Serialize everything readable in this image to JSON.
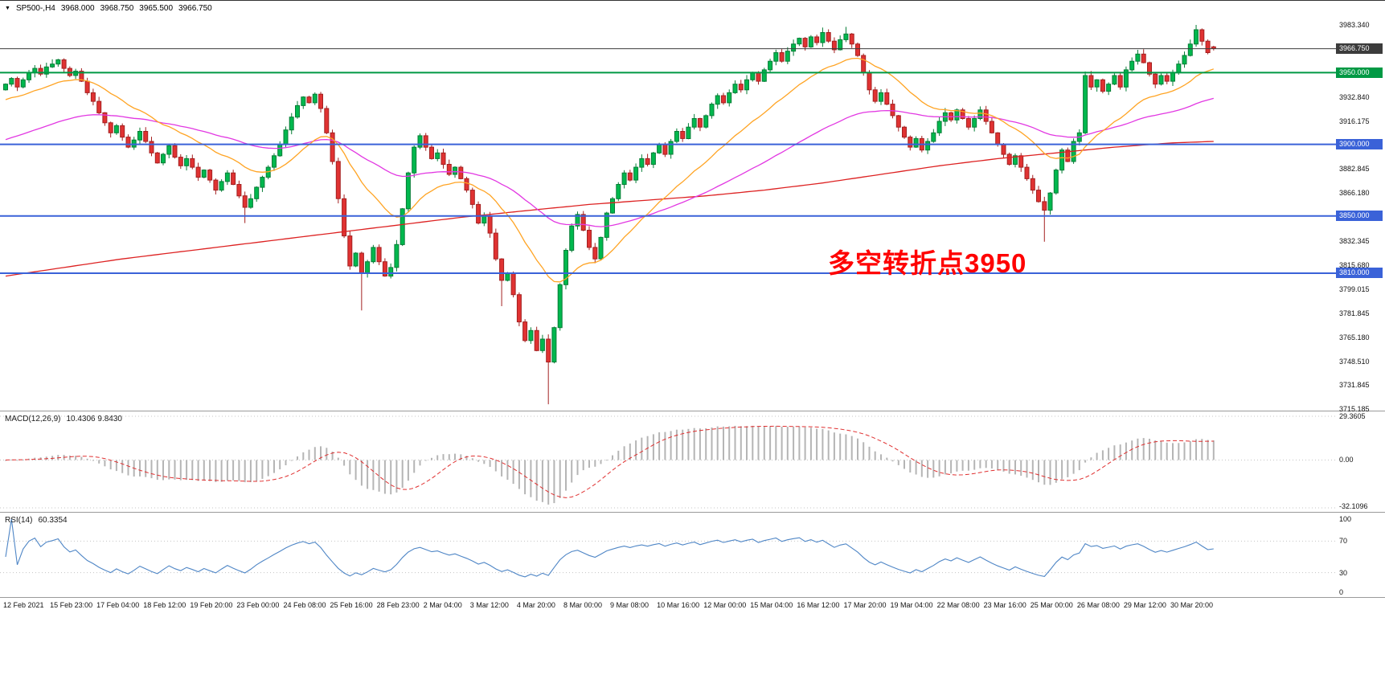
{
  "header": {
    "marker": "▼",
    "symbol_timeframe": "SP500-,H4",
    "open": "3968.000",
    "high": "3968.750",
    "low": "3965.500",
    "close": "3966.750"
  },
  "annotation": {
    "text": "多空转折点3950",
    "color": "#ff0000"
  },
  "price_axis": {
    "grid_labels": [
      "3983.340",
      "3932.840",
      "3916.175",
      "3882.845",
      "3866.180",
      "3832.345",
      "3815.680",
      "3799.015",
      "3781.845",
      "3765.180",
      "3748.510",
      "3731.845",
      "3715.185"
    ]
  },
  "panels": {
    "macd": {
      "name_label": "MACD(12,26,9)",
      "values_label": "10.4306 9.8430",
      "scale_labels": [
        "29.3605",
        "0.00",
        "-32.1096"
      ],
      "histogram_color": "#b5b5b5",
      "signal_color": "#e03030"
    },
    "rsi": {
      "name_label": "RSI(14)",
      "value_label": "60.3354",
      "scale_labels": [
        "100",
        "70",
        "30",
        "0"
      ],
      "dotted_levels": [
        70,
        30
      ],
      "line_color": "#4f86c6"
    }
  },
  "time_axis": {
    "labels": [
      "12 Feb 2021",
      "15 Feb 23:00",
      "17 Feb 04:00",
      "18 Feb 12:00",
      "19 Feb 20:00",
      "23 Feb 00:00",
      "24 Feb 08:00",
      "25 Feb 16:00",
      "28 Feb 23:00",
      "2 Mar 04:00",
      "3 Mar 12:00",
      "4 Mar 20:00",
      "8 Mar 00:00",
      "9 Mar 08:00",
      "10 Mar 16:00",
      "12 Mar 00:00",
      "15 Mar 04:00",
      "16 Mar 12:00",
      "17 Mar 20:00",
      "19 Mar 04:00",
      "22 Mar 08:00",
      "23 Mar 16:00",
      "25 Mar 00:00",
      "26 Mar 08:00",
      "29 Mar 12:00",
      "30 Mar 20:00"
    ]
  },
  "chart_data": {
    "type": "candlestick",
    "symbol": "SP500-",
    "timeframe": "H4",
    "y_range": [
      3715.185,
      3983.34
    ],
    "candles_per_label": 8,
    "first_open": 3938,
    "closes": [
      3942,
      3946,
      3940,
      3945,
      3950,
      3953,
      3949,
      3954,
      3956,
      3959,
      3953,
      3948,
      3951,
      3944,
      3936,
      3930,
      3922,
      3915,
      3908,
      3913,
      3905,
      3898,
      3903,
      3909,
      3902,
      3894,
      3887,
      3893,
      3899,
      3891,
      3885,
      3890,
      3884,
      3877,
      3882,
      3875,
      3868,
      3874,
      3880,
      3872,
      3864,
      3856,
      3862,
      3870,
      3877,
      3884,
      3892,
      3900,
      3910,
      3919,
      3927,
      3933,
      3929,
      3935,
      3925,
      3908,
      3888,
      3862,
      3836,
      3815,
      3824,
      3810,
      3818,
      3828,
      3818,
      3808,
      3814,
      3830,
      3855,
      3880,
      3898,
      3906,
      3898,
      3890,
      3894,
      3886,
      3879,
      3884,
      3876,
      3868,
      3858,
      3845,
      3850,
      3838,
      3820,
      3805,
      3810,
      3795,
      3776,
      3763,
      3770,
      3756,
      3764,
      3748,
      3772,
      3802,
      3826,
      3843,
      3851,
      3840,
      3828,
      3820,
      3835,
      3852,
      3862,
      3872,
      3880,
      3875,
      3884,
      3890,
      3886,
      3894,
      3900,
      3893,
      3902,
      3909,
      3904,
      3912,
      3918,
      3912,
      3920,
      3928,
      3934,
      3929,
      3936,
      3942,
      3938,
      3945,
      3950,
      3944,
      3952,
      3958,
      3964,
      3958,
      3965,
      3970,
      3974,
      3968,
      3975,
      3971,
      3978,
      3972,
      3966,
      3973,
      3977,
      3970,
      3962,
      3950,
      3938,
      3930,
      3936,
      3928,
      3920,
      3912,
      3905,
      3898,
      3904,
      3896,
      3902,
      3908,
      3916,
      3922,
      3917,
      3924,
      3918,
      3912,
      3918,
      3924,
      3916,
      3908,
      3900,
      3893,
      3886,
      3892,
      3884,
      3876,
      3868,
      3860,
      3854,
      3866,
      3882,
      3896,
      3888,
      3902,
      3908,
      3948,
      3940,
      3945,
      3937,
      3942,
      3948,
      3940,
      3952,
      3958,
      3963,
      3957,
      3949,
      3942,
      3948,
      3944,
      3950,
      3956,
      3962,
      3970,
      3980,
      3972,
      3964,
      3966.75
    ],
    "overrides": [
      {
        "i": 41,
        "low": 3845
      },
      {
        "i": 61,
        "low": 3784
      },
      {
        "i": 85,
        "low": 3787
      },
      {
        "i": 93,
        "low": 3718.5
      },
      {
        "i": 140,
        "high": 3981.5
      },
      {
        "i": 144,
        "high": 3982
      },
      {
        "i": 178,
        "low": 3832
      },
      {
        "i": 204,
        "high": 3983.34
      },
      {
        "i": 207,
        "open": 3968,
        "high": 3968.75,
        "low": 3965.5
      }
    ],
    "up_color": "#00b84e",
    "up_stroke": "#067d36",
    "down_color": "#e03232",
    "down_stroke": "#a32020",
    "moving_averages": [
      {
        "name": "ma-slow-red",
        "color": "#dd2222",
        "type": "waypoints",
        "points": [
          [
            0,
            3808
          ],
          [
            20,
            3820
          ],
          [
            40,
            3830
          ],
          [
            60,
            3840
          ],
          [
            78,
            3849
          ],
          [
            90,
            3854
          ],
          [
            100,
            3858
          ],
          [
            110,
            3861
          ],
          [
            120,
            3864
          ],
          [
            130,
            3868
          ],
          [
            140,
            3873
          ],
          [
            150,
            3879
          ],
          [
            160,
            3885
          ],
          [
            170,
            3890
          ],
          [
            180,
            3894
          ],
          [
            190,
            3898
          ],
          [
            200,
            3901
          ],
          [
            207,
            3902
          ]
        ]
      },
      {
        "name": "ma-medium-magenta",
        "color": "#e238e2",
        "type": "ema",
        "period": 60,
        "seed": 3902
      },
      {
        "name": "ma-fast-orange",
        "color": "#ffa424",
        "type": "ema",
        "period": 20,
        "seed": 3930
      }
    ],
    "levels": [
      {
        "price": 3966.75,
        "label": "3966.750",
        "color": "#3c3c3c",
        "width": 1,
        "name": "current-price-line"
      },
      {
        "price": 3950,
        "label": "3950.000",
        "color": "#009944",
        "width": 2,
        "name": "level-line-3950"
      },
      {
        "price": 3900,
        "label": "3900.000",
        "color": "#3a62d8",
        "width": 2,
        "name": "level-line-3900"
      },
      {
        "price": 3850,
        "label": "3850.000",
        "color": "#3a62d8",
        "width": 2,
        "name": "level-line-3850"
      },
      {
        "price": 3810,
        "label": "3810.000",
        "color": "#3a62d8",
        "width": 2,
        "name": "level-line-3810"
      }
    ],
    "macd_params": {
      "fast": 12,
      "slow": 26,
      "signal": 9
    },
    "rsi_params": {
      "period": 14
    }
  }
}
